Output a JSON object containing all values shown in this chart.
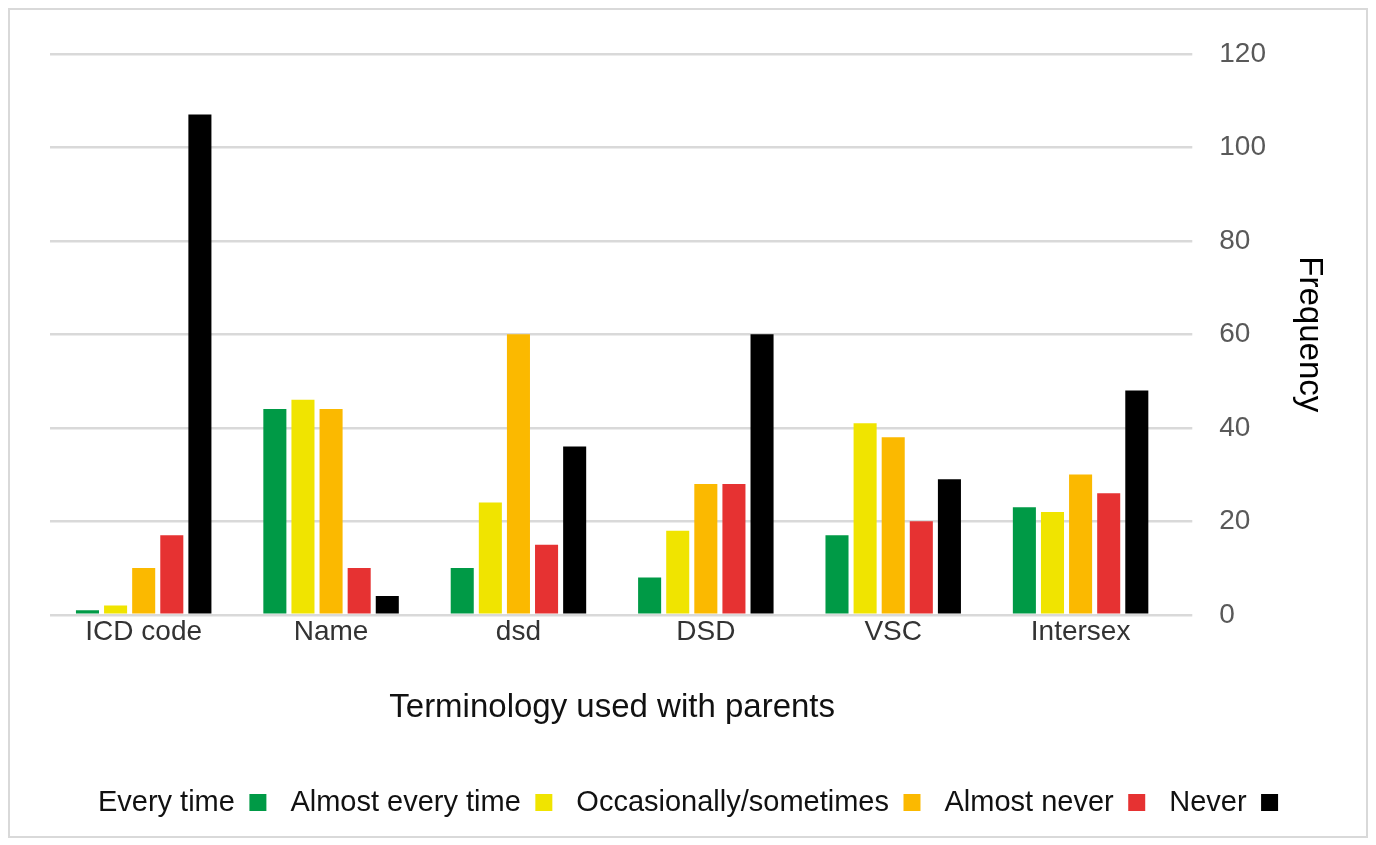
{
  "chart_data": {
    "type": "bar",
    "xlabel": "Terminology used with parents",
    "ylabel": "Frequency",
    "categories": [
      "ICD code",
      "Name",
      "dsd",
      "DSD",
      "VSC",
      "Intersex"
    ],
    "series": [
      {
        "name": "Every time",
        "color": "#009a46",
        "values": [
          1,
          44,
          10,
          8,
          17,
          23
        ]
      },
      {
        "name": "Almost every time",
        "color": "#f0e400",
        "values": [
          2,
          46,
          24,
          18,
          41,
          22
        ]
      },
      {
        "name": "Occasionally/sometimes",
        "color": "#fbb900",
        "values": [
          10,
          44,
          60,
          28,
          38,
          30
        ]
      },
      {
        "name": "Almost never",
        "color": "#e63232",
        "values": [
          17,
          10,
          15,
          28,
          20,
          26
        ]
      },
      {
        "name": "Never",
        "color": "#000000",
        "values": [
          107,
          4,
          36,
          60,
          29,
          48
        ]
      }
    ],
    "ylim": [
      0,
      120
    ],
    "yticks": [
      0,
      20,
      40,
      60,
      80,
      100,
      120
    ],
    "grid": "y",
    "legend": "bottom"
  }
}
